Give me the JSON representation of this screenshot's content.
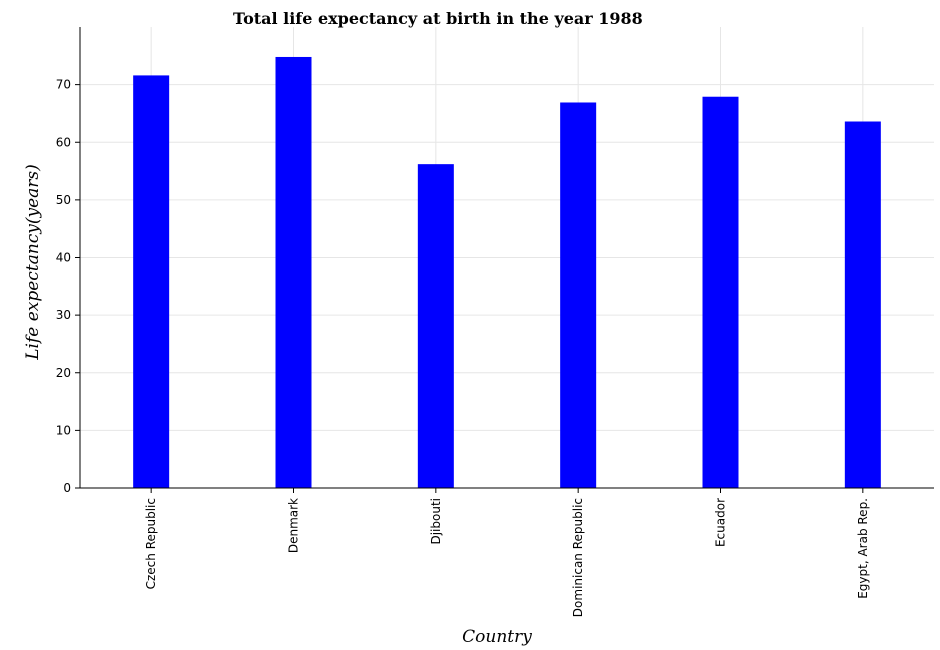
{
  "chart_data": {
    "type": "bar",
    "title": "Total life expectancy at birth in the year 1988",
    "xlabel": "Country",
    "ylabel": "Life expectancy(years)",
    "categories": [
      "Czech Republic",
      "Denmark",
      "Djibouti",
      "Dominican Republic",
      "Ecuador",
      "Egypt, Arab Rep."
    ],
    "values": [
      71.6,
      74.8,
      56.2,
      66.9,
      67.9,
      63.6
    ],
    "ylim": [
      0,
      80
    ],
    "yticks": [
      0,
      10,
      20,
      30,
      40,
      50,
      60,
      70
    ],
    "grid": true,
    "bar_color": "#0000ff"
  }
}
